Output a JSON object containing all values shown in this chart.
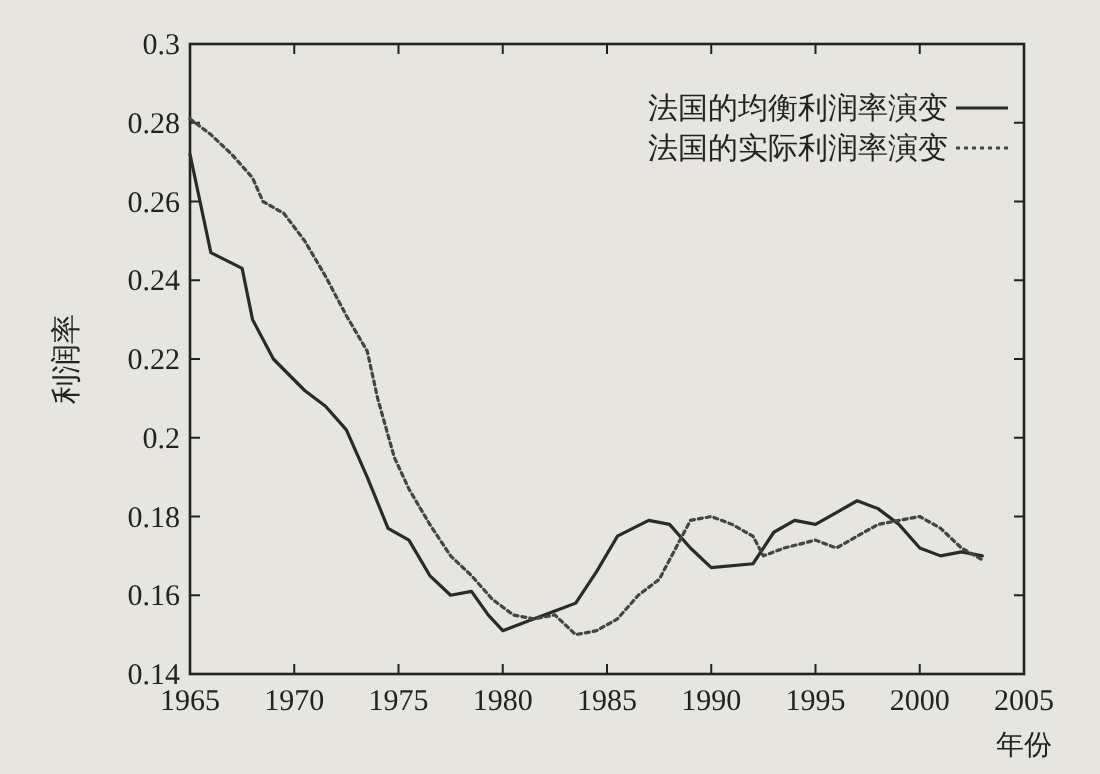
{
  "chart_data": {
    "type": "line",
    "xlabel": "年份",
    "ylabel": "利润率",
    "xlim": [
      1965,
      2005
    ],
    "xticks": [
      1965,
      1970,
      1975,
      1980,
      1985,
      1990,
      1995,
      2000,
      2005
    ],
    "ylim": [
      0.14,
      0.3
    ],
    "yticks": [
      0.14,
      0.16,
      0.18,
      0.2,
      0.22,
      0.24,
      0.26,
      0.28,
      0.3
    ],
    "legend": "top right",
    "grid": false,
    "marker": "none",
    "series": [
      {
        "name": "法国的均衡利润率演变",
        "color": "#2a2a2a",
        "line_style": "solid",
        "x": [
          1965,
          1966,
          1967.5,
          1968,
          1969,
          1970.5,
          1971.5,
          1972.5,
          1973.5,
          1974.5,
          1975.5,
          1976.5,
          1977.5,
          1978.5,
          1979.3,
          1980,
          1981,
          1982.5,
          1983.5,
          1984.5,
          1985.5,
          1987,
          1988,
          1989,
          1990,
          1992,
          1993,
          1994,
          1995,
          1996,
          1997,
          1998,
          1999,
          2000,
          2001,
          2002,
          2003
        ],
        "values": [
          0.272,
          0.247,
          0.243,
          0.23,
          0.22,
          0.212,
          0.208,
          0.202,
          0.19,
          0.177,
          0.174,
          0.165,
          0.16,
          0.161,
          0.155,
          0.151,
          0.153,
          0.156,
          0.158,
          0.166,
          0.175,
          0.179,
          0.178,
          0.172,
          0.167,
          0.168,
          0.176,
          0.179,
          0.178,
          0.181,
          0.184,
          0.182,
          0.178,
          0.172,
          0.17,
          0.171,
          0.17
        ]
      },
      {
        "name": "法国的实际利润率演变",
        "color": "#444444",
        "line_style": "dotted",
        "x": [
          1965,
          1966,
          1967,
          1968,
          1968.5,
          1969.5,
          1970.5,
          1971.5,
          1972.5,
          1973.5,
          1974,
          1974.8,
          1975.5,
          1976.5,
          1977.5,
          1978.5,
          1979.5,
          1980.5,
          1981.5,
          1982.5,
          1983.5,
          1984.5,
          1985.5,
          1986.5,
          1987.5,
          1988.5,
          1989,
          1990,
          1991,
          1992,
          1992.5,
          1993.5,
          1995,
          1996,
          1997,
          1998,
          1999,
          2000,
          2001,
          2002,
          2003
        ],
        "values": [
          0.281,
          0.277,
          0.272,
          0.266,
          0.26,
          0.257,
          0.25,
          0.241,
          0.231,
          0.222,
          0.21,
          0.195,
          0.187,
          0.178,
          0.17,
          0.165,
          0.159,
          0.155,
          0.154,
          0.155,
          0.15,
          0.151,
          0.154,
          0.16,
          0.164,
          0.174,
          0.179,
          0.18,
          0.178,
          0.175,
          0.17,
          0.172,
          0.174,
          0.172,
          0.175,
          0.178,
          0.179,
          0.18,
          0.177,
          0.172,
          0.169
        ]
      }
    ]
  }
}
